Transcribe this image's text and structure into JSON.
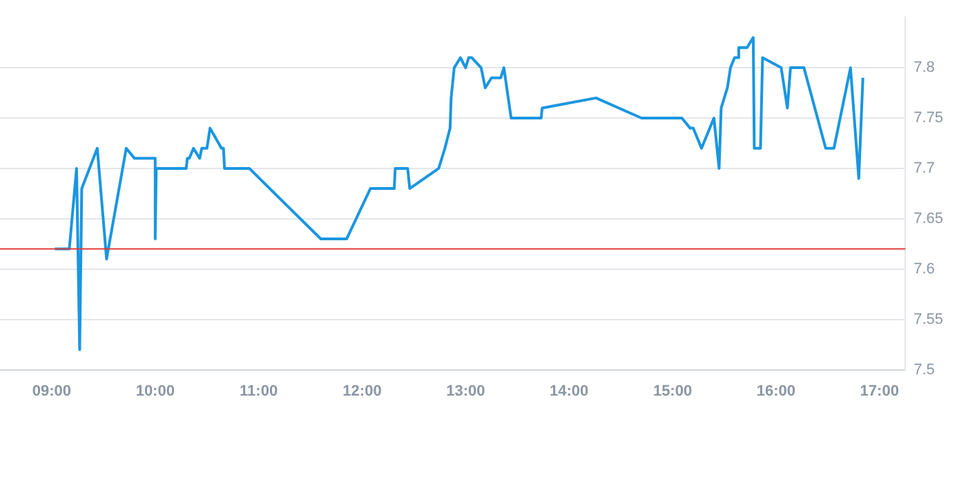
{
  "chart_data": {
    "type": "line",
    "x": [
      9.03,
      9.17,
      9.24,
      9.27,
      9.29,
      9.44,
      9.53,
      9.72,
      9.8,
      10.0,
      10.0,
      10.01,
      10.3,
      10.31,
      10.33,
      10.37,
      10.43,
      10.45,
      10.5,
      10.53,
      10.64,
      10.66,
      10.67,
      10.91,
      11.6,
      11.85,
      12.08,
      12.31,
      12.32,
      12.44,
      12.46,
      12.74,
      12.8,
      12.85,
      12.86,
      12.89,
      12.95,
      13.0,
      13.03,
      13.06,
      13.15,
      13.19,
      13.25,
      13.34,
      13.37,
      13.44,
      13.73,
      13.74,
      14.26,
      14.7,
      15.09,
      15.17,
      15.2,
      15.28,
      15.4,
      15.45,
      15.47,
      15.53,
      15.56,
      15.6,
      15.63,
      15.64,
      15.72,
      15.78,
      15.79,
      15.85,
      15.87,
      16.05,
      16.11,
      16.14,
      16.27,
      16.48,
      16.56,
      16.72,
      16.8,
      16.84
    ],
    "series": [
      {
        "color": "#1a96e0",
        "values": [
          7.62,
          7.62,
          7.7,
          7.52,
          7.68,
          7.72,
          7.61,
          7.72,
          7.71,
          7.71,
          7.63,
          7.7,
          7.7,
          7.71,
          7.71,
          7.72,
          7.71,
          7.72,
          7.72,
          7.74,
          7.72,
          7.72,
          7.7,
          7.7,
          7.63,
          7.63,
          7.68,
          7.68,
          7.7,
          7.7,
          7.68,
          7.7,
          7.72,
          7.74,
          7.77,
          7.8,
          7.81,
          7.8,
          7.81,
          7.81,
          7.8,
          7.78,
          7.79,
          7.79,
          7.8,
          7.75,
          7.75,
          7.76,
          7.77,
          7.75,
          7.75,
          7.74,
          7.74,
          7.72,
          7.75,
          7.7,
          7.76,
          7.78,
          7.8,
          7.81,
          7.81,
          7.82,
          7.82,
          7.83,
          7.72,
          7.72,
          7.81,
          7.8,
          7.76,
          7.8,
          7.8,
          7.72,
          7.72,
          7.8,
          7.69,
          7.79
        ]
      }
    ],
    "xlim": [
      8.5,
      17.25
    ],
    "xticks": [
      {
        "value": 9,
        "label": "09:00"
      },
      {
        "value": 10,
        "label": "10:00"
      },
      {
        "value": 11,
        "label": "11:00"
      },
      {
        "value": 12,
        "label": "12:00"
      },
      {
        "value": 13,
        "label": "13:00"
      },
      {
        "value": 14,
        "label": "14:00"
      },
      {
        "value": 15,
        "label": "15:00"
      },
      {
        "value": 16,
        "label": "16:00"
      },
      {
        "value": 17,
        "label": "17:00"
      }
    ],
    "ylim": [
      7.5,
      7.85
    ],
    "yticks": [
      7.5,
      7.55,
      7.6,
      7.65,
      7.7,
      7.75,
      7.8
    ],
    "ref_lines": [
      {
        "axis": "y",
        "value": 7.62,
        "color": "#e03a3a"
      }
    ],
    "grid": "y",
    "legend": false,
    "marker": "none",
    "line_style": "solid"
  }
}
